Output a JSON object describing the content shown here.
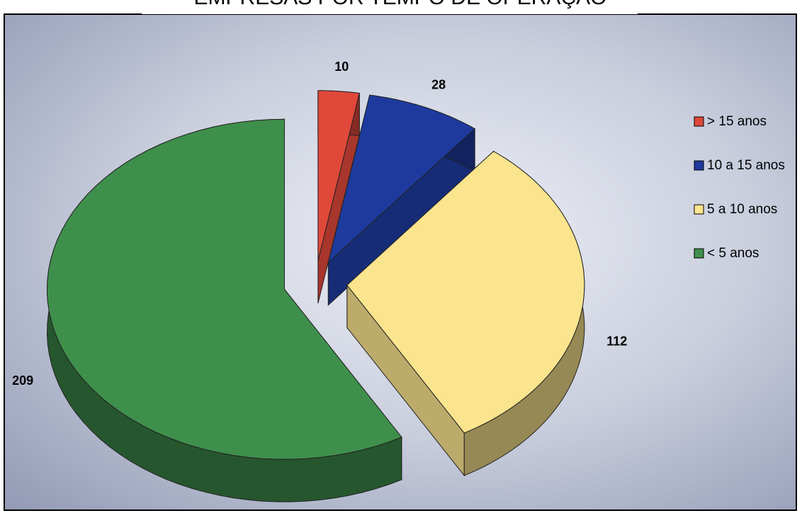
{
  "chart_data": {
    "type": "pie",
    "title": "EMPRESAS POR TEMPO DE OPERAÇÃO",
    "categories": [
      "> 15 anos",
      "10 a 15 anos",
      "5 a 10 anos",
      "< 5 anos"
    ],
    "values": [
      10,
      28,
      112,
      209
    ],
    "colors": [
      "#e0483a",
      "#1e3a9e",
      "#fbe48e",
      "#3f8f4c"
    ],
    "legend": "right"
  }
}
